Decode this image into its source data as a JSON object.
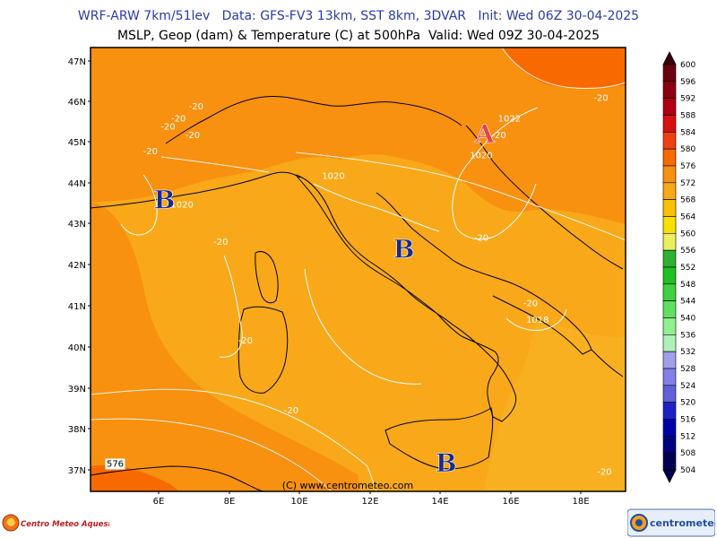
{
  "header": {
    "line1": "WRF-ARW 7km/51lev   Data: GFS-FV3 13km, SST 8km, 3DVAR   Init: Wed 06Z 30-04-2025",
    "line2": "MSLP, Geop (dam) & Temperature (C) at 500hPa  Valid: Wed 09Z 30-04-2025"
  },
  "map": {
    "lat_labels": [
      "47N",
      "46N",
      "45N",
      "44N",
      "43N",
      "42N",
      "41N",
      "40N",
      "39N",
      "38N",
      "37N"
    ],
    "lon_labels": [
      "6E",
      "8E",
      "10E",
      "12E",
      "14E",
      "16E",
      "18E"
    ],
    "copyright": "(C) www.centrometeo.com",
    "pressure_centers": [
      {
        "letter": "A",
        "color": "#e8404a",
        "lon": 15.5,
        "lat": 45.2
      },
      {
        "letter": "B",
        "color": "#1a2a8a",
        "lon": 6.4,
        "lat": 43.6
      },
      {
        "letter": "B",
        "color": "#1a2a8a",
        "lon": 13.2,
        "lat": 42.4
      },
      {
        "letter": "B",
        "color": "#1a2a8a",
        "lon": 14.4,
        "lat": 37.2
      }
    ],
    "isobar_labels": [
      {
        "text": "1022",
        "lon": 16.2,
        "lat": 45.5
      },
      {
        "text": "1020",
        "lon": 15.4,
        "lat": 44.6
      },
      {
        "text": "1020",
        "lon": 11.2,
        "lat": 44.1
      },
      {
        "text": "1020",
        "lon": 6.9,
        "lat": 43.4
      },
      {
        "text": "1018",
        "lon": 17.0,
        "lat": 40.6
      }
    ],
    "temp_labels": [
      {
        "text": "-20",
        "lon": 7.3,
        "lat": 45.8
      },
      {
        "text": "-20",
        "lon": 6.8,
        "lat": 45.5
      },
      {
        "text": "-20",
        "lon": 6.5,
        "lat": 45.3
      },
      {
        "text": "-20",
        "lon": 7.2,
        "lat": 45.1
      },
      {
        "text": "-20",
        "lon": 6.0,
        "lat": 44.7
      },
      {
        "text": "-20",
        "lon": 15.9,
        "lat": 45.1
      },
      {
        "text": "-20",
        "lon": 18.8,
        "lat": 46.0
      },
      {
        "text": "-20",
        "lon": 8.0,
        "lat": 42.5
      },
      {
        "text": "-20",
        "lon": 15.4,
        "lat": 42.6
      },
      {
        "text": "-20",
        "lon": 16.8,
        "lat": 41.0
      },
      {
        "text": "-20",
        "lon": 8.7,
        "lat": 40.1
      },
      {
        "text": "-20",
        "lon": 10.0,
        "lat": 38.4
      },
      {
        "text": "-20",
        "lon": 18.9,
        "lat": 36.9
      }
    ],
    "geop_labels": [
      {
        "text": "576",
        "lon": 5.0,
        "lat": 37.1
      }
    ]
  },
  "colorbar": {
    "values": [
      600,
      596,
      592,
      588,
      584,
      580,
      576,
      572,
      568,
      564,
      560,
      556,
      552,
      548,
      544,
      540,
      536,
      532,
      528,
      524,
      520,
      516,
      512,
      508,
      504
    ],
    "colors": [
      "#3a0008",
      "#6a0010",
      "#8a0010",
      "#b00014",
      "#d81010",
      "#f04010",
      "#f86a00",
      "#f89010",
      "#f8a818",
      "#f8c000",
      "#f8e000",
      "#e8f060",
      "#30b030",
      "#20c020",
      "#40d040",
      "#60e060",
      "#90f090",
      "#b0f0b8",
      "#a0a0e8",
      "#8080e8",
      "#6060d8",
      "#2020c8",
      "#0000a8",
      "#000080",
      "#000050"
    ]
  },
  "logos": {
    "left_text": "Centro Meteo Aquesio",
    "right_text": "centrometeo"
  }
}
